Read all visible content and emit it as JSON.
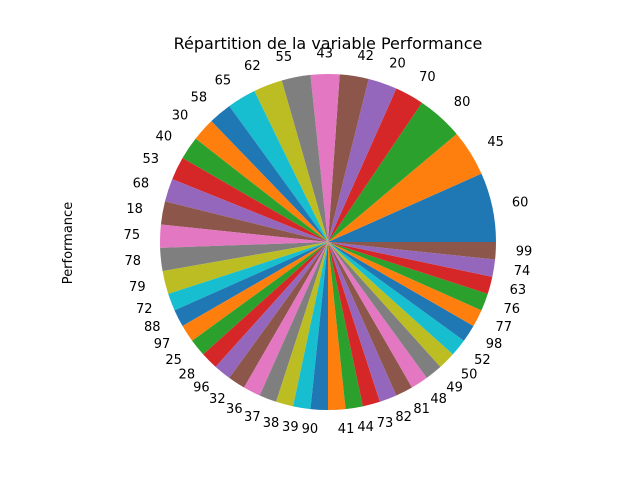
{
  "chart_data": {
    "type": "pie",
    "title": "Répartition de la variable Performance",
    "ylabel": "Performance",
    "start_angle_deg": 0,
    "direction": "counterclockwise",
    "categories": [
      "60",
      "45",
      "80",
      "70",
      "20",
      "42",
      "43",
      "55",
      "62",
      "65",
      "58",
      "30",
      "40",
      "53",
      "68",
      "18",
      "75",
      "78",
      "79",
      "72",
      "88",
      "97",
      "25",
      "28",
      "96",
      "32",
      "36",
      "37",
      "38",
      "39",
      "90",
      "41",
      "44",
      "73",
      "82",
      "81",
      "48",
      "49",
      "50",
      "52",
      "98",
      "77",
      "76",
      "63",
      "74",
      "99"
    ],
    "values": [
      12,
      8,
      8,
      5,
      5,
      5,
      5,
      5,
      5,
      5,
      4,
      4,
      4,
      4,
      4,
      4,
      4,
      4,
      4,
      3,
      3,
      3,
      3,
      3,
      3,
      3,
      3,
      3,
      3,
      3,
      3,
      3,
      3,
      3,
      3,
      3,
      3,
      3,
      3,
      3,
      3,
      3,
      3,
      3,
      3,
      3
    ],
    "colors": [
      "#1f77b4",
      "#ff7f0e",
      "#2ca02c",
      "#d62728",
      "#9467bd",
      "#8c564b",
      "#e377c2",
      "#7f7f7f",
      "#bcbd22",
      "#17becf"
    ]
  }
}
